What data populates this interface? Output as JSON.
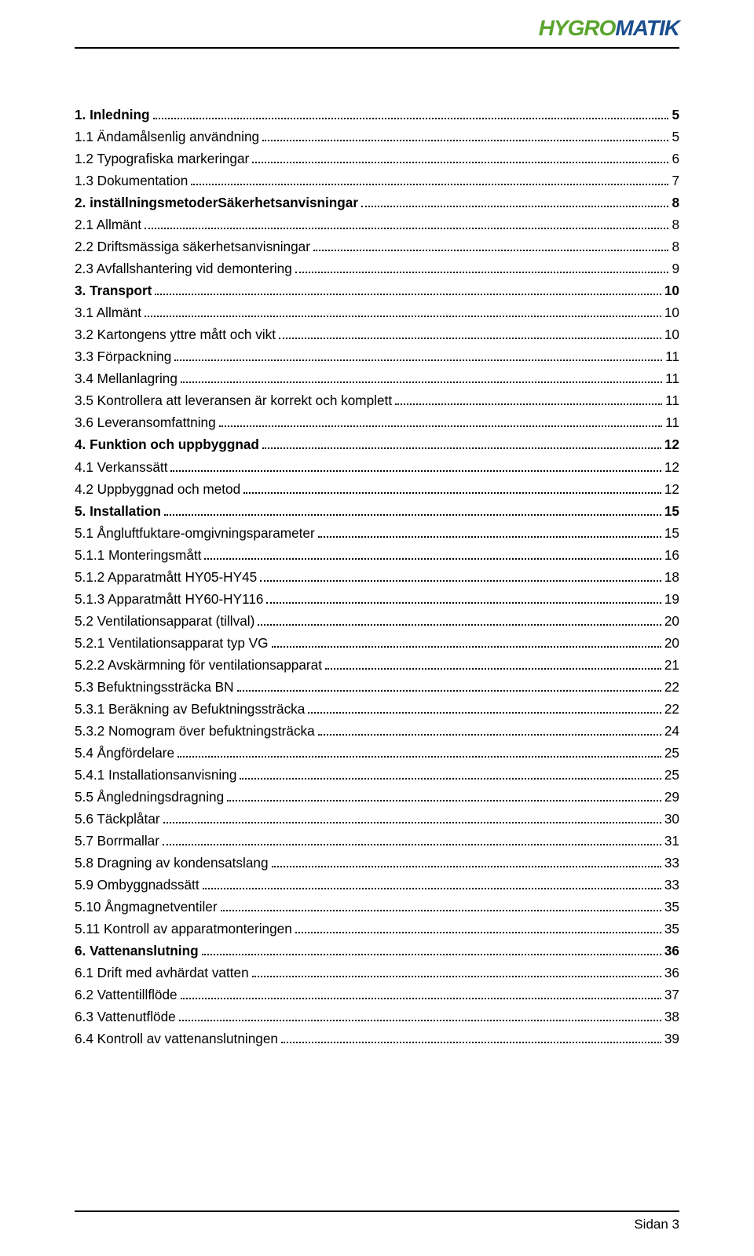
{
  "logo": {
    "part1": "HYGRO",
    "part2": "MATIK"
  },
  "toc": [
    {
      "label": "1. Inledning",
      "page": "5",
      "bold": true
    },
    {
      "label": "1.1 Ändamålsenlig användning",
      "page": "5",
      "bold": false
    },
    {
      "label": "1.2 Typografiska markeringar",
      "page": "6",
      "bold": false
    },
    {
      "label": "1.3 Dokumentation",
      "page": "7",
      "bold": false
    },
    {
      "label": "2. inställningsmetoderSäkerhetsanvisningar",
      "page": "8",
      "bold": true
    },
    {
      "label": "2.1 Allmänt",
      "page": "8",
      "bold": false
    },
    {
      "label": "2.2 Driftsmässiga säkerhetsanvisningar",
      "page": "8",
      "bold": false
    },
    {
      "label": "2.3 Avfallshantering vid demontering",
      "page": "9",
      "bold": false
    },
    {
      "label": "3. Transport",
      "page": "10",
      "bold": true
    },
    {
      "label": "3.1 Allmänt",
      "page": "10",
      "bold": false
    },
    {
      "label": "3.2 Kartongens yttre mått och vikt",
      "page": "10",
      "bold": false
    },
    {
      "label": "3.3 Förpackning",
      "page": "11",
      "bold": false
    },
    {
      "label": "3.4 Mellanlagring",
      "page": "11",
      "bold": false
    },
    {
      "label": "3.5 Kontrollera att leveransen är korrekt och komplett",
      "page": "11",
      "bold": false
    },
    {
      "label": "3.6 Leveransomfattning",
      "page": "11",
      "bold": false
    },
    {
      "label": "4. Funktion och uppbyggnad",
      "page": "12",
      "bold": true
    },
    {
      "label": "4.1 Verkanssätt",
      "page": "12",
      "bold": false
    },
    {
      "label": "4.2 Uppbyggnad och metod",
      "page": "12",
      "bold": false
    },
    {
      "label": "5. Installation",
      "page": "15",
      "bold": true
    },
    {
      "label": "5.1 Ångluftfuktare-omgivningsparameter",
      "page": "15",
      "bold": false
    },
    {
      "label": "5.1.1 Monteringsmått",
      "page": "16",
      "bold": false
    },
    {
      "label": "5.1.2 Apparatmått HY05-HY45",
      "page": "18",
      "bold": false
    },
    {
      "label": "5.1.3 Apparatmått HY60-HY116",
      "page": "19",
      "bold": false
    },
    {
      "label": "5.2 Ventilationsapparat (tillval)",
      "page": "20",
      "bold": false
    },
    {
      "label": "5.2.1 Ventilationsapparat typ VG",
      "page": "20",
      "bold": false
    },
    {
      "label": "5.2.2 Avskärmning för ventilationsapparat",
      "page": "21",
      "bold": false
    },
    {
      "label": "5.3 Befuktningssträcka BN",
      "page": "22",
      "bold": false
    },
    {
      "label": "5.3.1 Beräkning av Befuktningssträcka",
      "page": "22",
      "bold": false
    },
    {
      "label": "5.3.2 Nomogram över befuktningsträcka",
      "page": "24",
      "bold": false
    },
    {
      "label": "5.4 Ångfördelare",
      "page": "25",
      "bold": false
    },
    {
      "label": "5.4.1 Installationsanvisning",
      "page": "25",
      "bold": false
    },
    {
      "label": "5.5 Ångledningsdragning",
      "page": "29",
      "bold": false
    },
    {
      "label": "5.6 Täckplåtar",
      "page": "30",
      "bold": false
    },
    {
      "label": "5.7 Borrmallar",
      "page": "31",
      "bold": false
    },
    {
      "label": "5.8 Dragning av kondensatslang",
      "page": "33",
      "bold": false
    },
    {
      "label": "5.9 Ombyggnadssätt",
      "page": "33",
      "bold": false
    },
    {
      "label": "5.10 Ångmagnetventiler",
      "page": "35",
      "bold": false
    },
    {
      "label": "5.11 Kontroll av apparatmonteringen",
      "page": "35",
      "bold": false
    },
    {
      "label": "6. Vattenanslutning",
      "page": "36",
      "bold": true
    },
    {
      "label": "6.1 Drift med avhärdat vatten",
      "page": "36",
      "bold": false
    },
    {
      "label": "6.2 Vattentillflöde",
      "page": "37",
      "bold": false
    },
    {
      "label": "6.3 Vattenutflöde",
      "page": "38",
      "bold": false
    },
    {
      "label": "6.4 Kontroll av vattenanslutningen",
      "page": "39",
      "bold": false
    }
  ],
  "footer": "Sidan 3"
}
